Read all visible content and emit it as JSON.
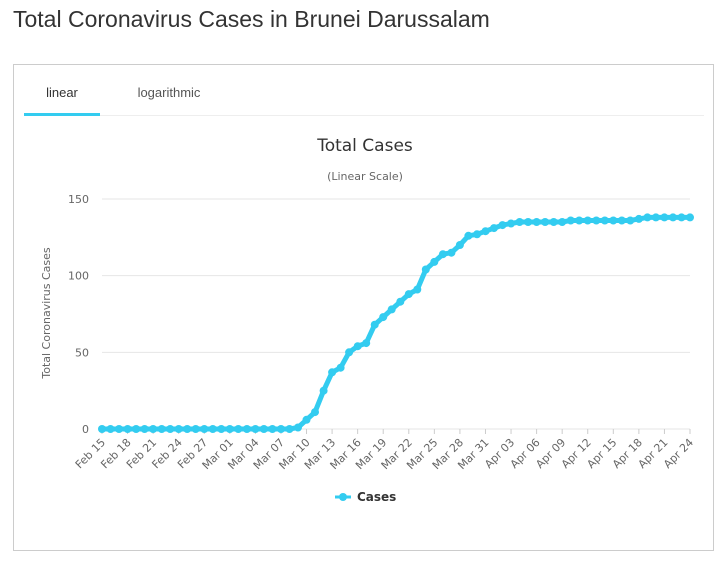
{
  "page": {
    "title": "Total Coronavirus Cases in Brunei Darussalam"
  },
  "tabs": [
    {
      "label": "linear",
      "active": true
    },
    {
      "label": "logarithmic",
      "active": false
    }
  ],
  "colors": {
    "series": "#33ccf0",
    "tab_active": "#33ccf0",
    "grid": "#e6e6e6"
  },
  "chart_data": {
    "type": "line",
    "title": "Total Cases",
    "subtitle": "(Linear Scale)",
    "ylabel": "Total Coronavirus Cases",
    "xlabel": "",
    "ylim": [
      0,
      150
    ],
    "yticks": [
      0,
      50,
      100,
      150
    ],
    "grid": true,
    "legend": "bottom-center",
    "x": [
      "Feb 15",
      "Feb 16",
      "Feb 17",
      "Feb 18",
      "Feb 19",
      "Feb 20",
      "Feb 21",
      "Feb 22",
      "Feb 23",
      "Feb 24",
      "Feb 25",
      "Feb 26",
      "Feb 27",
      "Feb 28",
      "Feb 29",
      "Mar 01",
      "Mar 02",
      "Mar 03",
      "Mar 04",
      "Mar 05",
      "Mar 06",
      "Mar 07",
      "Mar 08",
      "Mar 09",
      "Mar 10",
      "Mar 11",
      "Mar 12",
      "Mar 13",
      "Mar 14",
      "Mar 15",
      "Mar 16",
      "Mar 17",
      "Mar 18",
      "Mar 19",
      "Mar 20",
      "Mar 21",
      "Mar 22",
      "Mar 23",
      "Mar 24",
      "Mar 25",
      "Mar 26",
      "Mar 27",
      "Mar 28",
      "Mar 29",
      "Mar 30",
      "Mar 31",
      "Apr 01",
      "Apr 02",
      "Apr 03",
      "Apr 04",
      "Apr 05",
      "Apr 06",
      "Apr 07",
      "Apr 08",
      "Apr 09",
      "Apr 10",
      "Apr 11",
      "Apr 12",
      "Apr 13",
      "Apr 14",
      "Apr 15",
      "Apr 16",
      "Apr 17",
      "Apr 18",
      "Apr 19",
      "Apr 20",
      "Apr 21",
      "Apr 22",
      "Apr 23",
      "Apr 24"
    ],
    "xtick_labels": [
      "Feb 15",
      "Feb 18",
      "Feb 21",
      "Feb 24",
      "Feb 27",
      "Mar 01",
      "Mar 04",
      "Mar 07",
      "Mar 10",
      "Mar 13",
      "Mar 16",
      "Mar 19",
      "Mar 22",
      "Mar 25",
      "Mar 28",
      "Mar 31",
      "Apr 03",
      "Apr 06",
      "Apr 09",
      "Apr 12",
      "Apr 15",
      "Apr 18",
      "Apr 21",
      "Apr 24"
    ],
    "series": [
      {
        "name": "Cases",
        "values": [
          0,
          0,
          0,
          0,
          0,
          0,
          0,
          0,
          0,
          0,
          0,
          0,
          0,
          0,
          0,
          0,
          0,
          0,
          0,
          0,
          0,
          0,
          0,
          1,
          6,
          11,
          25,
          37,
          40,
          50,
          54,
          56,
          68,
          73,
          78,
          83,
          88,
          91,
          104,
          109,
          114,
          115,
          120,
          126,
          127,
          129,
          131,
          133,
          134,
          135,
          135,
          135,
          135,
          135,
          135,
          136,
          136,
          136,
          136,
          136,
          136,
          136,
          136,
          137,
          138,
          138,
          138,
          138,
          138,
          138
        ]
      }
    ]
  }
}
